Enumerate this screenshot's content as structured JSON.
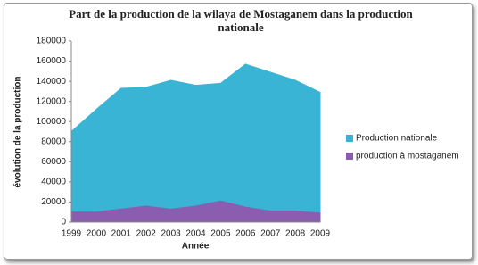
{
  "chart_data": {
    "type": "area",
    "title": "Part de la production de la wilaya de Mostaganem dans la production nationale",
    "x_label": "Année",
    "y_label": "évolution de la production",
    "categories": [
      "1999",
      "2000",
      "2001",
      "2002",
      "2003",
      "2004",
      "2005",
      "2006",
      "2007",
      "2008",
      "2009"
    ],
    "series": [
      {
        "name": "Production nationale",
        "color": "#3ab4d4",
        "values": [
          90000,
          112000,
          133000,
          134000,
          141000,
          136000,
          138000,
          157000,
          149000,
          141000,
          129000
        ]
      },
      {
        "name": "production à mostaganem",
        "color": "#8a5db0",
        "values": [
          10000,
          10000,
          13000,
          16000,
          13000,
          16000,
          21000,
          15000,
          11000,
          11000,
          9000
        ]
      }
    ],
    "ylim": [
      0,
      180000
    ],
    "yticks": [
      0,
      20000,
      40000,
      60000,
      80000,
      100000,
      120000,
      140000,
      160000,
      180000
    ],
    "grid": false,
    "legend": "right"
  }
}
